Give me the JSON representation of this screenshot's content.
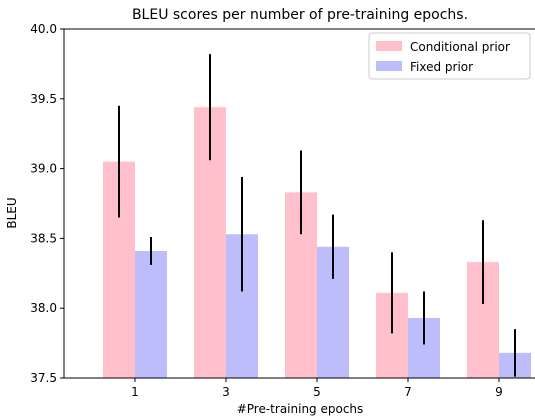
{
  "chart_data": {
    "type": "bar",
    "title": "BLEU scores per number of pre-training epochs.",
    "xlabel": "#Pre-training epochs",
    "ylabel": "BLEU",
    "categories": [
      "1",
      "3",
      "5",
      "7",
      "9"
    ],
    "ylim": [
      37.5,
      40.0
    ],
    "yticks": [
      "37.5",
      "38.0",
      "38.5",
      "39.0",
      "39.5",
      "40.0"
    ],
    "grid": false,
    "legend_position": "top-right",
    "series": [
      {
        "name": "Conditional prior",
        "color": "#ffc0cb",
        "values": [
          39.05,
          39.44,
          38.83,
          38.11,
          38.33
        ],
        "error": [
          0.4,
          0.38,
          0.3,
          0.29,
          0.3
        ]
      },
      {
        "name": "Fixed prior",
        "color": "#bdbdfc",
        "values": [
          38.41,
          38.53,
          38.44,
          37.93,
          37.68
        ],
        "error": [
          0.1,
          0.41,
          0.23,
          0.19,
          0.17
        ]
      }
    ]
  }
}
